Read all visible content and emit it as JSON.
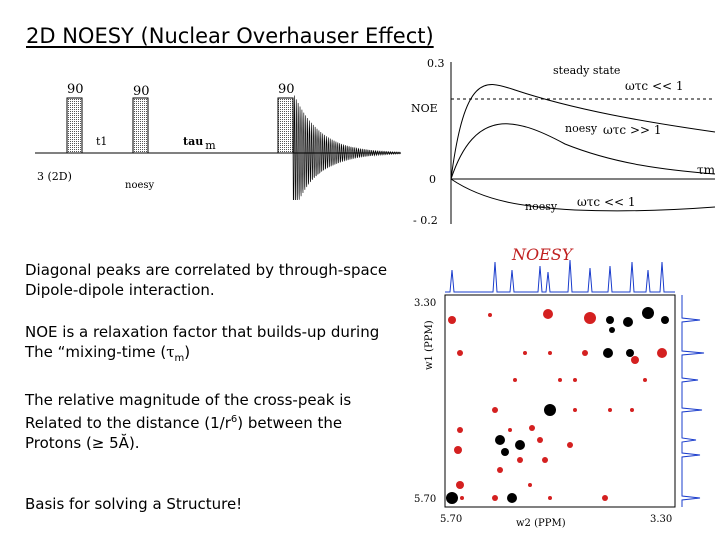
{
  "slide": {
    "title": "2D NOESY (Nuclear Overhauser Effect)",
    "paragraphs": [
      {
        "line1": "Diagonal peaks are correlated by through-space",
        "line2": "Dipole-dipole interaction."
      },
      {
        "line1": "NOE is a relaxation factor that builds-up during",
        "line2_pre": "The “mixing-time (",
        "tau": "τ",
        "sub": "m",
        "close": ")"
      },
      {
        "line1_pre": "The relative magnitude of the cross-peak is",
        "line2_pre": "Related to the distance (1/r",
        "sup": "6",
        "line2_post": ") between the",
        "line3": "Protons (≥ 5Ă)."
      },
      {
        "line1": "Basis for solving a Structure!"
      }
    ]
  },
  "pulse_sequence": {
    "label_90_1": "90",
    "label_90_2": "90",
    "label_90_3": "90",
    "t1": "t1",
    "tau": "tau",
    "tau_sub": "m",
    "dim": "3  (2D)",
    "noesy": "noesy"
  },
  "noe_plot": {
    "y_top": "0.3",
    "y_zero": "0",
    "y_bottom": "- 0.2",
    "ylabel": "NOE",
    "steady_state": "steady state",
    "omega_tau_lt": "ωτc << 1",
    "noesy_label_1": "noesy",
    "omega_tau_gt": "ωτc >> 1",
    "tau_m": "τm",
    "noesy_label_2": "noesy",
    "omega_tau_lt2": "ωτc << 1"
  },
  "spectrum": {
    "title": "NOESY",
    "y_top": "3.30",
    "y_bottom": "5.70",
    "x_left": "5.70",
    "x_right": "3.30",
    "xlabel": "w2 (PPM)",
    "ylabel": "w1 (PPM)"
  },
  "colors": {
    "red": "#d42020",
    "black": "#000000",
    "blue": "#1a3ccc",
    "title_red": "#c02020"
  }
}
